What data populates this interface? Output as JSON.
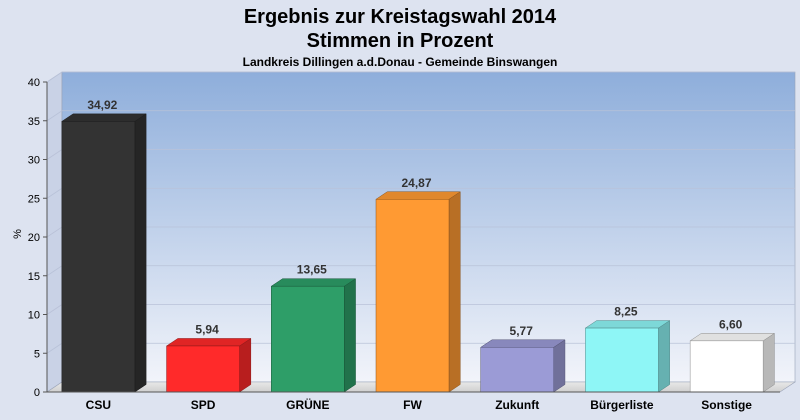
{
  "chart_data": {
    "type": "bar",
    "title": "Ergebnis zur Kreistagswahl 2014",
    "subtitle": "Stimmen in Prozent",
    "caption": "Landkreis Dillingen a.d.Donau - Gemeinde Binswangen",
    "ylabel": "%",
    "ylim": [
      0,
      40
    ],
    "yticks": [
      0,
      5,
      10,
      15,
      20,
      25,
      30,
      35,
      40
    ],
    "grid": true,
    "categories": [
      "CSU",
      "SPD",
      "GRÜNE",
      "FW",
      "Zukunft",
      "Bürgerliste",
      "Sonstige"
    ],
    "values": [
      34.92,
      5.94,
      13.65,
      24.87,
      5.77,
      8.25,
      6.6
    ],
    "value_labels": [
      "34,92",
      "5,94",
      "13,65",
      "24,87",
      "5,77",
      "8,25",
      "6,60"
    ],
    "colors": [
      "#333333",
      "#ff2a2a",
      "#2e9e68",
      "#ff9a33",
      "#9b9bd6",
      "#8ef6f6",
      "#ffffff"
    ]
  }
}
